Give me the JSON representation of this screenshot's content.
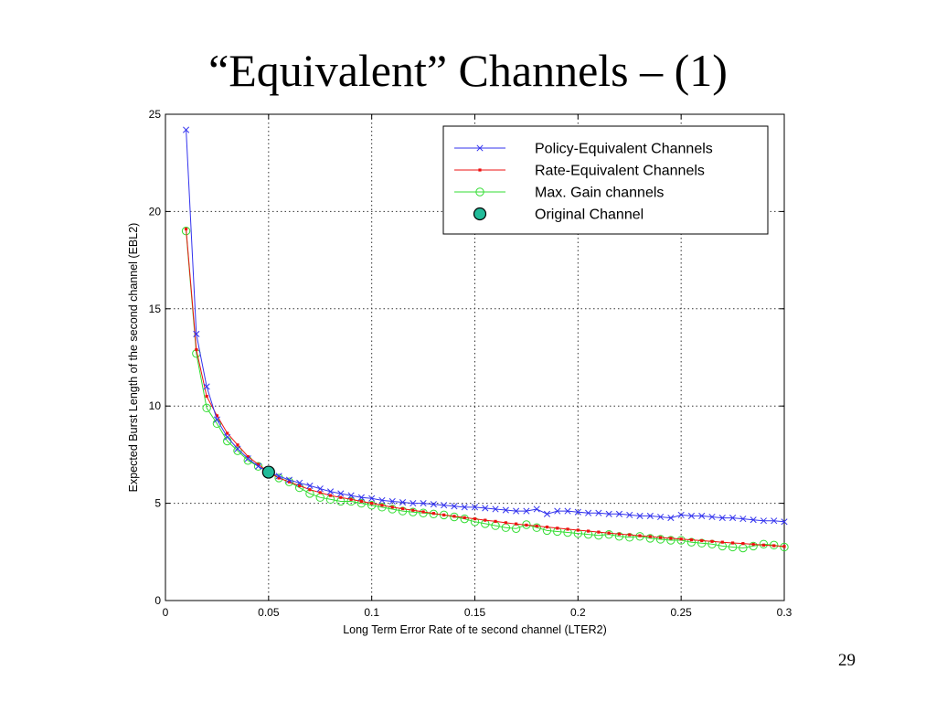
{
  "slide": {
    "title": "“Equivalent” Channels – (1)",
    "page_number": "29"
  },
  "colors": {
    "policy": "#3333ee",
    "rate": "#ee1111",
    "maxgain": "#33dd33",
    "original": "#22bb99",
    "grid": "#333333"
  },
  "chart_data": {
    "type": "line",
    "title": "",
    "xlabel": "Long Term Error Rate of te second channel (LTER2)",
    "ylabel": "Expected Burst Length of the second channel (EBL2)",
    "xlim": [
      0,
      0.3
    ],
    "ylim": [
      0,
      25
    ],
    "x_ticks": [
      0,
      0.05,
      0.1,
      0.15,
      0.2,
      0.25,
      0.3
    ],
    "x_tick_labels": [
      "0",
      "0.05",
      "0.1",
      "0.15",
      "0.2",
      "0.25",
      "0.3"
    ],
    "y_ticks": [
      0,
      5,
      10,
      15,
      20,
      25
    ],
    "y_tick_labels": [
      "0",
      "5",
      "10",
      "15",
      "20",
      "25"
    ],
    "grid": true,
    "legend_position": "top-right",
    "series": [
      {
        "name": "Policy-Equivalent Channels",
        "marker": "x",
        "x": [
          0.01,
          0.015,
          0.02,
          0.025,
          0.03,
          0.035,
          0.04,
          0.045,
          0.05,
          0.055,
          0.06,
          0.065,
          0.07,
          0.075,
          0.08,
          0.085,
          0.09,
          0.095,
          0.1,
          0.105,
          0.11,
          0.115,
          0.12,
          0.125,
          0.13,
          0.135,
          0.14,
          0.145,
          0.15,
          0.155,
          0.16,
          0.165,
          0.17,
          0.175,
          0.18,
          0.185,
          0.19,
          0.195,
          0.2,
          0.205,
          0.21,
          0.215,
          0.22,
          0.225,
          0.23,
          0.235,
          0.24,
          0.245,
          0.25,
          0.255,
          0.26,
          0.265,
          0.27,
          0.275,
          0.28,
          0.285,
          0.29,
          0.295,
          0.3
        ],
        "y": [
          24.2,
          13.7,
          11.0,
          9.3,
          8.4,
          7.8,
          7.3,
          6.9,
          6.6,
          6.4,
          6.2,
          6.05,
          5.9,
          5.75,
          5.6,
          5.5,
          5.4,
          5.3,
          5.25,
          5.15,
          5.1,
          5.05,
          5.0,
          5.0,
          4.95,
          4.9,
          4.85,
          4.8,
          4.8,
          4.75,
          4.7,
          4.65,
          4.6,
          4.6,
          4.7,
          4.45,
          4.6,
          4.6,
          4.55,
          4.5,
          4.5,
          4.45,
          4.45,
          4.4,
          4.35,
          4.35,
          4.3,
          4.25,
          4.4,
          4.35,
          4.35,
          4.3,
          4.25,
          4.25,
          4.2,
          4.15,
          4.1,
          4.1,
          4.05
        ]
      },
      {
        "name": "Rate-Equivalent Channels",
        "marker": "dot",
        "x": [
          0.01,
          0.015,
          0.02,
          0.025,
          0.03,
          0.035,
          0.04,
          0.045,
          0.05,
          0.055,
          0.06,
          0.065,
          0.07,
          0.075,
          0.08,
          0.085,
          0.09,
          0.095,
          0.1,
          0.105,
          0.11,
          0.115,
          0.12,
          0.125,
          0.13,
          0.135,
          0.14,
          0.145,
          0.15,
          0.155,
          0.16,
          0.165,
          0.17,
          0.175,
          0.18,
          0.185,
          0.19,
          0.195,
          0.2,
          0.205,
          0.21,
          0.215,
          0.22,
          0.225,
          0.23,
          0.235,
          0.24,
          0.245,
          0.25,
          0.255,
          0.26,
          0.265,
          0.27,
          0.275,
          0.28,
          0.285,
          0.29,
          0.295,
          0.3
        ],
        "y": [
          19.1,
          12.9,
          10.5,
          9.5,
          8.6,
          8.0,
          7.4,
          7.0,
          6.6,
          6.3,
          6.1,
          5.9,
          5.7,
          5.55,
          5.4,
          5.3,
          5.2,
          5.1,
          5.0,
          4.9,
          4.8,
          4.72,
          4.64,
          4.56,
          4.48,
          4.4,
          4.33,
          4.26,
          4.2,
          4.13,
          4.07,
          4.0,
          3.94,
          3.88,
          3.83,
          3.78,
          3.72,
          3.67,
          3.62,
          3.57,
          3.52,
          3.47,
          3.42,
          3.38,
          3.33,
          3.29,
          3.24,
          3.2,
          3.16,
          3.12,
          3.08,
          3.04,
          3.0,
          2.96,
          2.93,
          2.89,
          2.85,
          2.82,
          2.78
        ]
      },
      {
        "name": "Max. Gain channels",
        "marker": "circle",
        "x": [
          0.01,
          0.015,
          0.02,
          0.025,
          0.03,
          0.035,
          0.04,
          0.045,
          0.05,
          0.055,
          0.06,
          0.065,
          0.07,
          0.075,
          0.08,
          0.085,
          0.09,
          0.095,
          0.1,
          0.105,
          0.11,
          0.115,
          0.12,
          0.125,
          0.13,
          0.135,
          0.14,
          0.145,
          0.15,
          0.155,
          0.16,
          0.165,
          0.17,
          0.175,
          0.18,
          0.185,
          0.19,
          0.195,
          0.2,
          0.205,
          0.21,
          0.215,
          0.22,
          0.225,
          0.23,
          0.235,
          0.24,
          0.245,
          0.25,
          0.255,
          0.26,
          0.265,
          0.27,
          0.275,
          0.28,
          0.285,
          0.29,
          0.295,
          0.3
        ],
        "y": [
          19.0,
          12.7,
          9.9,
          9.1,
          8.2,
          7.7,
          7.2,
          6.9,
          6.6,
          6.3,
          6.1,
          5.8,
          5.5,
          5.3,
          5.2,
          5.1,
          5.1,
          5.0,
          4.9,
          4.8,
          4.7,
          4.6,
          4.55,
          4.5,
          4.45,
          4.4,
          4.3,
          4.2,
          4.05,
          3.95,
          3.85,
          3.75,
          3.7,
          3.9,
          3.75,
          3.6,
          3.55,
          3.5,
          3.45,
          3.4,
          3.35,
          3.4,
          3.3,
          3.25,
          3.3,
          3.2,
          3.15,
          3.1,
          3.1,
          3.0,
          2.95,
          2.9,
          2.8,
          2.75,
          2.7,
          2.8,
          2.9,
          2.85,
          2.75
        ]
      },
      {
        "name": "Original Channel",
        "marker": "big-circle",
        "x": [
          0.05
        ],
        "y": [
          6.6
        ]
      }
    ]
  }
}
